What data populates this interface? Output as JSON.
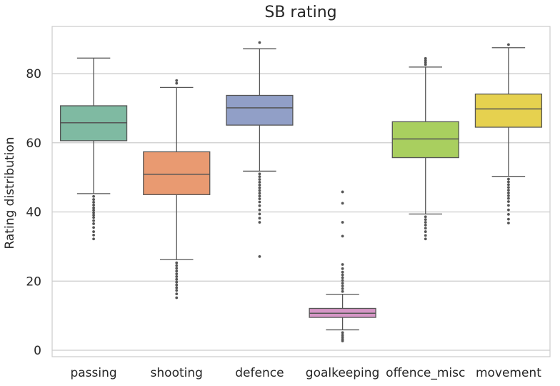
{
  "chart_data": {
    "type": "box",
    "title": "SB rating",
    "xlabel": "",
    "ylabel": "Rating distribution",
    "ylim": [
      -2,
      94
    ],
    "yticks": [
      0,
      20,
      40,
      60,
      80
    ],
    "grid": "horizontal",
    "categories": [
      "passing",
      "shooting",
      "defence",
      "goalkeeping",
      "offence_misc",
      "movement"
    ],
    "colors": [
      "#7fbaa2",
      "#e99a71",
      "#919fc7",
      "#d696c6",
      "#a9cf5f",
      "#e6d14f"
    ],
    "boxes": [
      {
        "name": "passing",
        "whisker_low": 45.3,
        "q1": 60.6,
        "median": 65.8,
        "q3": 70.7,
        "whisker_high": 84.5,
        "outliers": [
          44.5,
          43.6,
          42.8,
          42.0,
          41.2,
          40.5,
          39.8,
          39.1,
          38.4,
          37.5,
          36.6,
          35.5,
          34.3,
          33.3,
          32.2
        ]
      },
      {
        "name": "shooting",
        "whisker_low": 26.2,
        "q1": 45.0,
        "median": 50.9,
        "q3": 57.4,
        "whisker_high": 76.0,
        "outliers": [
          77.2,
          78.0,
          25.3,
          24.5,
          23.7,
          22.9,
          22.1,
          21.3,
          20.5,
          19.7,
          18.9,
          18.1,
          17.3,
          16.3,
          15.2
        ]
      },
      {
        "name": "defence",
        "whisker_low": 51.8,
        "q1": 65.1,
        "median": 70.1,
        "q3": 73.7,
        "whisker_high": 87.2,
        "outliers": [
          89.0,
          51.0,
          50.2,
          49.4,
          48.6,
          47.8,
          47.0,
          46.2,
          45.4,
          44.6,
          43.8,
          42.9,
          41.8,
          40.6,
          39.4,
          38.2,
          37.0,
          27.1
        ]
      },
      {
        "name": "goalkeeping",
        "whisker_low": 5.9,
        "q1": 9.5,
        "median": 10.7,
        "q3": 12.1,
        "whisker_high": 16.2,
        "outliers": [
          17.0,
          17.8,
          18.6,
          19.4,
          20.2,
          21.0,
          21.8,
          22.6,
          23.6,
          24.8,
          33.0,
          37.0,
          42.5,
          45.8,
          5.1,
          4.4,
          3.8,
          3.2,
          2.7
        ]
      },
      {
        "name": "offence_misc",
        "whisker_low": 39.4,
        "q1": 55.7,
        "median": 61.1,
        "q3": 66.1,
        "whisker_high": 81.9,
        "outliers": [
          82.6,
          83.2,
          83.8,
          84.4,
          38.6,
          37.8,
          37.0,
          36.2,
          35.3,
          34.3,
          33.2,
          32.2
        ]
      },
      {
        "name": "movement",
        "whisker_low": 50.3,
        "q1": 64.5,
        "median": 69.8,
        "q3": 74.1,
        "whisker_high": 87.5,
        "outliers": [
          88.4,
          49.5,
          48.7,
          47.9,
          47.1,
          46.3,
          45.5,
          44.7,
          43.9,
          43.0,
          41.9,
          40.6,
          39.3,
          37.9,
          36.8
        ]
      }
    ]
  }
}
